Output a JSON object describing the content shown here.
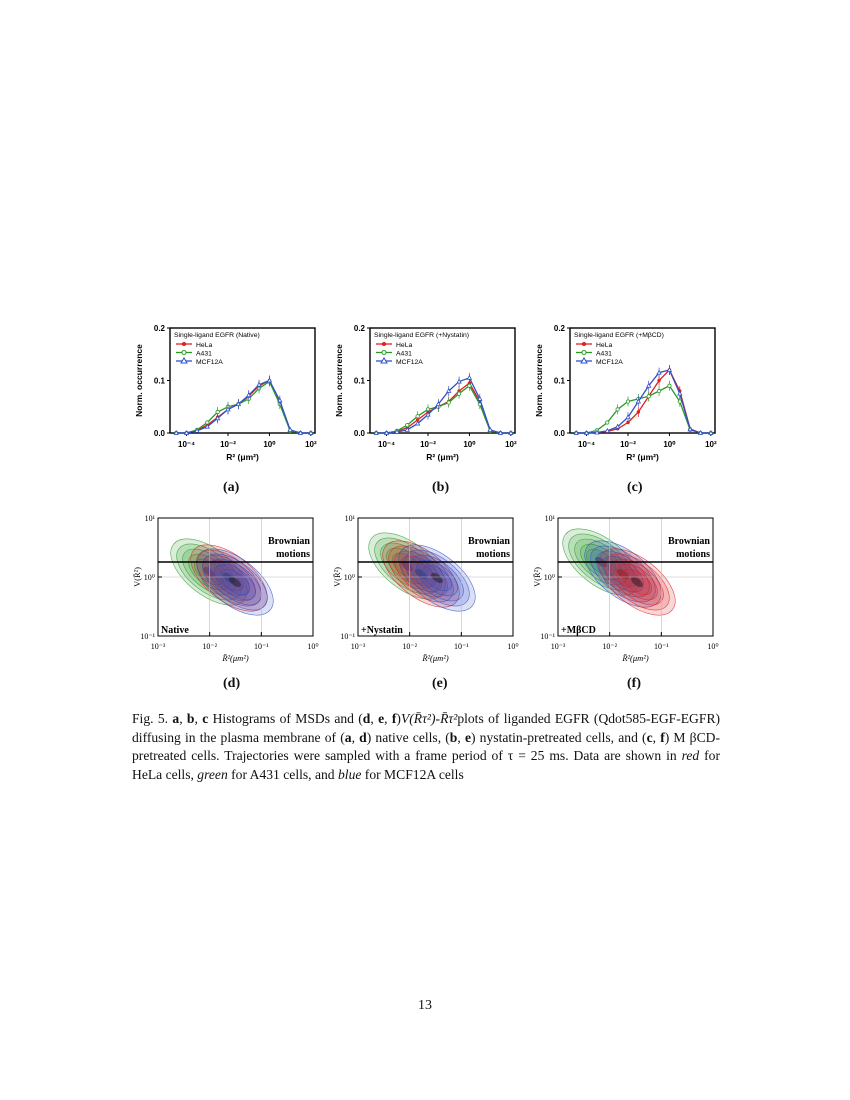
{
  "histograms": [
    {
      "id": "a",
      "label": "(a)",
      "legend_title": "Single-ligand EGFR (Native)",
      "ylabel": "Norm. occurrence",
      "xlabel": "R² (μm²)",
      "x_ticks": [
        "10⁻⁴",
        "10⁻²",
        "10⁰",
        "10²"
      ],
      "y_ticks": [
        "0.0",
        "0.1",
        "0.2"
      ]
    },
    {
      "id": "b",
      "label": "(b)",
      "legend_title": "Single-ligand EGFR (+Nystatin)",
      "ylabel": "Norm. occurrence",
      "xlabel": "R² (μm²)",
      "x_ticks": [
        "10⁻⁴",
        "10⁻²",
        "10⁰",
        "10²"
      ],
      "y_ticks": [
        "0.0",
        "0.1",
        "0.2"
      ]
    },
    {
      "id": "c",
      "label": "(c)",
      "legend_title": "Single-ligand EGFR (+MβCD)",
      "ylabel": "Norm. occurrence",
      "xlabel": "R² (μm²)",
      "x_ticks": [
        "10⁻⁴",
        "10⁻²",
        "10⁰",
        "10²"
      ],
      "y_ticks": [
        "0.0",
        "0.1",
        "0.2"
      ]
    }
  ],
  "contours": [
    {
      "id": "d",
      "label": "(d)",
      "condition": "Native",
      "region_label_1": "Brownian",
      "region_label_2": "motions",
      "ylabel": "V(R̄²)",
      "xlabel": "R̄²(μm²)",
      "x_ticks": [
        "10⁻³",
        "10⁻²",
        "10⁻¹",
        "10⁰"
      ],
      "y_ticks": [
        "10⁻¹",
        "10⁰",
        "10¹"
      ]
    },
    {
      "id": "e",
      "label": "(e)",
      "condition": "+Nystatin",
      "region_label_1": "Brownian",
      "region_label_2": "motions",
      "ylabel": "V(R̄²)",
      "xlabel": "R̄²(μm²)",
      "x_ticks": [
        "10⁻³",
        "10⁻²",
        "10⁻¹",
        "10⁰"
      ],
      "y_ticks": [
        "10⁻¹",
        "10⁰",
        "10¹"
      ]
    },
    {
      "id": "f",
      "label": "(f)",
      "condition": "+MβCD",
      "region_label_1": "Brownian",
      "region_label_2": "motions",
      "ylabel": "V(R̄²)",
      "xlabel": "R̄²(μm²)",
      "x_ticks": [
        "10⁻³",
        "10⁻²",
        "10⁻¹",
        "10⁰"
      ],
      "y_ticks": [
        "10⁻¹",
        "10⁰",
        "10¹"
      ]
    }
  ],
  "legend_series": [
    "HeLa",
    "A431",
    "MCF12A"
  ],
  "colors": {
    "HeLa": "#e02020",
    "A431": "#2a9a2a",
    "MCF12A": "#3050c8"
  },
  "chart_data": [
    {
      "type": "line",
      "panel": "a",
      "x_log10": [
        -4.5,
        -4,
        -3.5,
        -3,
        -2.5,
        -2,
        -1.5,
        -1,
        -0.5,
        0,
        0.5,
        1,
        1.5,
        2
      ],
      "series": [
        {
          "name": "HeLa",
          "values": [
            0,
            0,
            0.005,
            0.015,
            0.03,
            0.045,
            0.055,
            0.07,
            0.09,
            0.1,
            0.06,
            0.005,
            0,
            0
          ]
        },
        {
          "name": "A431",
          "values": [
            0,
            0,
            0.006,
            0.02,
            0.04,
            0.05,
            0.055,
            0.065,
            0.085,
            0.098,
            0.055,
            0.004,
            0,
            0
          ]
        },
        {
          "name": "MCF12A",
          "values": [
            0,
            0,
            0.004,
            0.012,
            0.028,
            0.045,
            0.055,
            0.072,
            0.092,
            0.1,
            0.062,
            0.006,
            0,
            0
          ]
        }
      ],
      "ylim": [
        0,
        0.2
      ]
    },
    {
      "type": "line",
      "panel": "b",
      "x_log10": [
        -4.5,
        -4,
        -3.5,
        -3,
        -2.5,
        -2,
        -1.5,
        -1,
        -0.5,
        0,
        0.5,
        1,
        1.5,
        2
      ],
      "series": [
        {
          "name": "HeLa",
          "values": [
            0,
            0,
            0.003,
            0.01,
            0.025,
            0.04,
            0.05,
            0.06,
            0.08,
            0.095,
            0.06,
            0.005,
            0,
            0
          ]
        },
        {
          "name": "A431",
          "values": [
            0,
            0,
            0.004,
            0.015,
            0.032,
            0.045,
            0.05,
            0.058,
            0.075,
            0.09,
            0.055,
            0.004,
            0,
            0
          ]
        },
        {
          "name": "MCF12A",
          "values": [
            0,
            0,
            0.002,
            0.006,
            0.018,
            0.035,
            0.055,
            0.08,
            0.098,
            0.105,
            0.065,
            0.006,
            0,
            0
          ]
        }
      ],
      "ylim": [
        0,
        0.2
      ]
    },
    {
      "type": "line",
      "panel": "c",
      "x_log10": [
        -4.5,
        -4,
        -3.5,
        -3,
        -2.5,
        -2,
        -1.5,
        -1,
        -0.5,
        0,
        0.5,
        1,
        1.5,
        2
      ],
      "series": [
        {
          "name": "HeLa",
          "values": [
            0,
            0,
            0.001,
            0.003,
            0.008,
            0.02,
            0.04,
            0.07,
            0.1,
            0.12,
            0.08,
            0.008,
            0,
            0
          ]
        },
        {
          "name": "A431",
          "values": [
            0,
            0,
            0.005,
            0.02,
            0.045,
            0.06,
            0.065,
            0.07,
            0.08,
            0.09,
            0.06,
            0.006,
            0,
            0
          ]
        },
        {
          "name": "MCF12A",
          "values": [
            0,
            0,
            0.001,
            0.004,
            0.012,
            0.03,
            0.06,
            0.09,
            0.115,
            0.12,
            0.075,
            0.007,
            0,
            0
          ]
        }
      ],
      "ylim": [
        0,
        0.2
      ]
    }
  ],
  "caption": {
    "fig": "Fig. 5.",
    "a": "a",
    "b": "b",
    "c": "c",
    "d": "d",
    "e": "e",
    "f": "f",
    "part1": "Histograms of MSDs and (",
    "part2": ")",
    "formula": "V(R̄τ²)-R̄τ²",
    "part3": "plots of liganded EGFR (Qdot585-EGF-EGFR) diffusing in the plasma membrane of (",
    "part4": ") native cells, (",
    "part5": ") nystatin-pretreated cells, and (",
    "part6": ") M βCD-pretreated cells. Trajectories were sampled with a frame period of τ = 25 ms. Data are shown in ",
    "red": "red",
    "part7": " for HeLa cells, ",
    "green": "green",
    "part8": " for A431 cells, and ",
    "blue": "blue",
    "part9": " for MCF12A cells"
  },
  "page_number": "13"
}
